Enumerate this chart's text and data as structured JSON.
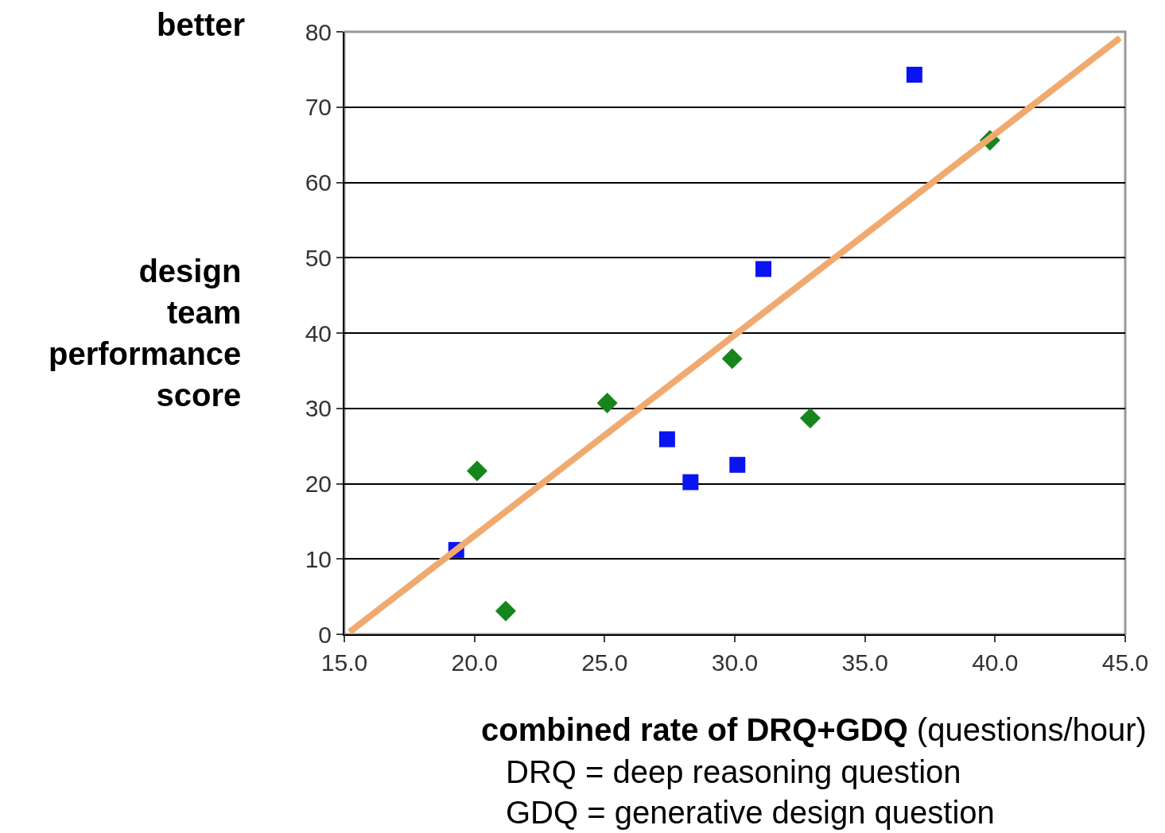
{
  "chart_data": {
    "type": "scatter",
    "xlabel": "combined rate of DRQ+GDQ (questions/hour)",
    "ylabel": "design team performance score",
    "annotations": [
      "better",
      "DRQ = deep reasoning question",
      "GDQ = generative design question"
    ],
    "series": [
      {
        "color": "#0a14f0",
        "marker": "square",
        "x": [
          19.3,
          27.4,
          28.3,
          30.1,
          31.1,
          36.9
        ],
        "values": [
          11.2,
          25.9,
          20.2,
          22.5,
          48.5,
          74.3
        ]
      },
      {
        "color": "#16861c",
        "marker": "diamond",
        "x": [
          20.1,
          21.2,
          25.1,
          29.9,
          32.9,
          39.8
        ],
        "values": [
          21.7,
          3.1,
          30.7,
          36.6,
          28.7,
          65.6
        ]
      },
      {
        "type": "line",
        "color": "#f0aa70",
        "marker": "none",
        "x": [
          15.2,
          44.8
        ],
        "values": [
          0.3,
          79.2
        ]
      }
    ],
    "xlim": [
      15,
      45
    ],
    "xticks": [
      {
        "value": 15,
        "label": "15.0"
      },
      {
        "value": 20,
        "label": "20.0"
      },
      {
        "value": 25,
        "label": "25.0"
      },
      {
        "value": 30,
        "label": "30.0"
      },
      {
        "value": 35,
        "label": "35.0"
      },
      {
        "value": 40,
        "label": "40.0"
      },
      {
        "value": 45,
        "label": "45.0"
      }
    ],
    "ylim": [
      0,
      80
    ],
    "yticks": [
      0,
      10,
      20,
      30,
      40,
      50,
      60,
      70,
      80
    ],
    "grid": "y"
  }
}
